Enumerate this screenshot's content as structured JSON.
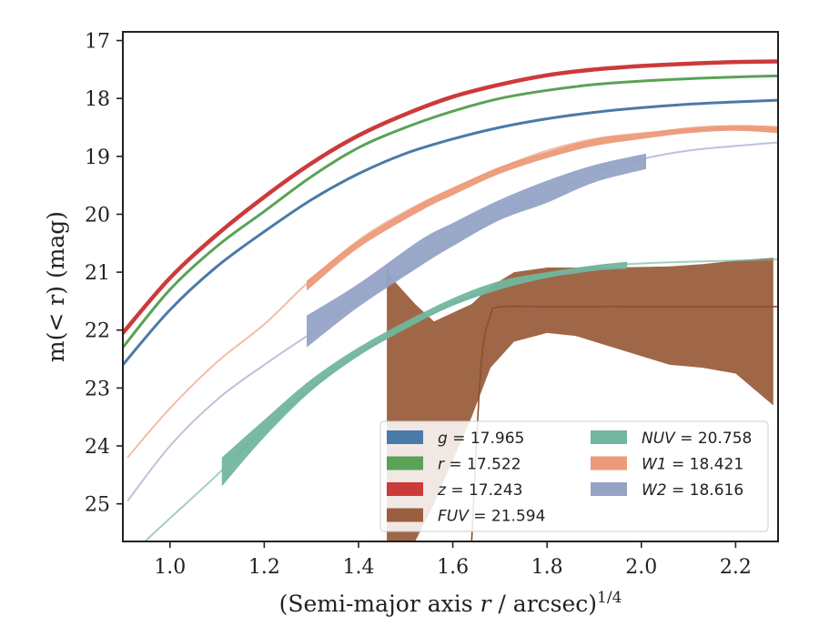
{
  "chart_data": {
    "type": "line",
    "xlabel": "(Semi-major axis r / arcsec)",
    "xlabel_sup": "1/4",
    "ylabel": "m(< r) (mag)",
    "xlim": [
      0.9,
      2.29
    ],
    "ylim": [
      25.65,
      16.85
    ],
    "y_inverted": true,
    "x_ticks": [
      1.0,
      1.2,
      1.4,
      1.6,
      1.8,
      2.0,
      2.2
    ],
    "x_tick_labels": [
      "1.0",
      "1.2",
      "1.4",
      "1.6",
      "1.8",
      "2.0",
      "2.2"
    ],
    "y_ticks": [
      17,
      18,
      19,
      20,
      21,
      22,
      23,
      24,
      25
    ],
    "y_tick_labels": [
      "17",
      "18",
      "19",
      "20",
      "21",
      "22",
      "23",
      "24",
      "25"
    ],
    "grid": false,
    "legend_position": "lower-right",
    "series": [
      {
        "name": "g = 17.965",
        "symbol": "g",
        "value": "17.965",
        "color": "#4a7aa8",
        "x": [
          0.9,
          1.0,
          1.1,
          1.2,
          1.3,
          1.4,
          1.5,
          1.6,
          1.7,
          1.8,
          1.9,
          2.0,
          2.1,
          2.2,
          2.29
        ],
        "y": [
          22.6,
          21.65,
          20.9,
          20.3,
          19.75,
          19.3,
          18.95,
          18.7,
          18.5,
          18.35,
          18.24,
          18.16,
          18.1,
          18.06,
          18.03
        ],
        "band_x": [
          0.9,
          2.29
        ],
        "band_lo": [
          0.03,
          0.03
        ],
        "band_hi": [
          0.03,
          0.03
        ]
      },
      {
        "name": "r = 17.522",
        "symbol": "r",
        "value": "17.522",
        "color": "#5aa255",
        "x": [
          0.9,
          1.0,
          1.1,
          1.2,
          1.3,
          1.4,
          1.5,
          1.6,
          1.7,
          1.8,
          1.9,
          2.0,
          2.1,
          2.2,
          2.29
        ],
        "y": [
          22.3,
          21.3,
          20.55,
          19.95,
          19.35,
          18.85,
          18.5,
          18.22,
          18.0,
          17.86,
          17.76,
          17.7,
          17.66,
          17.63,
          17.61
        ],
        "band_x": [
          0.9,
          2.29
        ],
        "band_lo": [
          0.03,
          0.03
        ],
        "band_hi": [
          0.03,
          0.03
        ]
      },
      {
        "name": "z = 17.243",
        "symbol": "z",
        "value": "17.243",
        "color": "#cc3a3a",
        "x": [
          0.9,
          1.0,
          1.1,
          1.2,
          1.3,
          1.4,
          1.5,
          1.6,
          1.7,
          1.8,
          1.9,
          2.0,
          2.1,
          2.2,
          2.29
        ],
        "y": [
          22.05,
          21.1,
          20.35,
          19.7,
          19.12,
          18.64,
          18.27,
          17.97,
          17.76,
          17.6,
          17.5,
          17.44,
          17.4,
          17.37,
          17.36
        ],
        "band_x": [
          0.9,
          2.29
        ],
        "band_lo": [
          0.05,
          0.05
        ],
        "band_hi": [
          0.05,
          0.05
        ]
      },
      {
        "name": "FUV = 21.594",
        "symbol": "FUV",
        "value": "21.594",
        "color": "#9a5f3e",
        "x": [
          1.64,
          1.66,
          1.68,
          1.7,
          1.8,
          2.0,
          2.2,
          2.29
        ],
        "y": [
          25.65,
          22.6,
          21.75,
          21.6,
          21.594,
          21.594,
          21.594,
          21.594
        ],
        "band_x": [
          1.46,
          1.47,
          1.52,
          1.56,
          1.64,
          1.68,
          1.73,
          1.8,
          1.86,
          1.92,
          2.0,
          2.06,
          2.13,
          2.2,
          2.28
        ],
        "band_top": [
          20.85,
          21.1,
          21.55,
          21.85,
          21.55,
          21.25,
          21.0,
          20.92,
          20.92,
          20.92,
          20.91,
          20.9,
          20.86,
          20.8,
          20.75
        ],
        "band_bottom": [
          25.65,
          25.65,
          25.65,
          25.0,
          23.5,
          22.65,
          22.2,
          22.05,
          22.1,
          22.25,
          22.45,
          22.6,
          22.65,
          22.75,
          23.3
        ]
      },
      {
        "name": "NUV = 20.758",
        "symbol": "NUV",
        "value": "20.758",
        "color": "#72b69d",
        "x": [
          0.9,
          1.0,
          1.1,
          1.2,
          1.3,
          1.4,
          1.5,
          1.6,
          1.7,
          1.8,
          1.9,
          2.0,
          2.1,
          2.2,
          2.29
        ],
        "y": [
          26.0,
          25.25,
          24.5,
          23.7,
          23.0,
          22.4,
          21.95,
          21.55,
          21.25,
          21.05,
          20.9,
          20.85,
          20.82,
          20.8,
          20.78
        ],
        "band_x": [
          1.11,
          1.2,
          1.3,
          1.4,
          1.5,
          1.6,
          1.7,
          1.8,
          1.9,
          1.97
        ],
        "band_top": [
          24.2,
          23.55,
          22.85,
          22.3,
          21.85,
          21.45,
          21.15,
          21.0,
          20.88,
          20.82
        ],
        "band_bottom": [
          24.7,
          23.85,
          23.05,
          22.45,
          21.98,
          21.58,
          21.3,
          21.1,
          20.98,
          20.94
        ]
      },
      {
        "name": "W1 = 18.421",
        "symbol": "W1",
        "value": "18.421",
        "color": "#ec9a78",
        "x": [
          0.91,
          1.0,
          1.1,
          1.2,
          1.29,
          1.4,
          1.5,
          1.6,
          1.7,
          1.8,
          1.9,
          2.0,
          2.1,
          2.2,
          2.29
        ],
        "y": [
          24.2,
          23.35,
          22.55,
          21.9,
          21.2,
          20.45,
          19.95,
          19.55,
          19.2,
          18.9,
          18.7,
          18.6,
          18.55,
          18.52,
          18.54
        ],
        "band_x": [
          1.29,
          1.4,
          1.53,
          1.6,
          1.7,
          1.8,
          1.9,
          2.0,
          2.1,
          2.2,
          2.29
        ],
        "band_top": [
          21.15,
          20.45,
          19.82,
          19.55,
          19.18,
          18.92,
          18.7,
          18.6,
          18.5,
          18.46,
          18.48
        ],
        "band_bottom": [
          21.32,
          20.58,
          19.95,
          19.67,
          19.3,
          19.03,
          18.82,
          18.7,
          18.6,
          18.56,
          18.6
        ]
      },
      {
        "name": "W2 = 18.616",
        "symbol": "W2",
        "value": "18.616",
        "color": "#95a3c6",
        "x": [
          0.91,
          1.0,
          1.1,
          1.2,
          1.3,
          1.4,
          1.5,
          1.6,
          1.7,
          1.8,
          1.9,
          2.0,
          2.1,
          2.2,
          2.29
        ],
        "y": [
          24.95,
          24.0,
          23.2,
          22.6,
          22.05,
          21.5,
          21.0,
          20.5,
          20.05,
          19.65,
          19.3,
          19.05,
          18.9,
          18.82,
          18.76
        ],
        "band_x": [
          1.29,
          1.4,
          1.53,
          1.6,
          1.7,
          1.8,
          1.9,
          2.01
        ],
        "band_top": [
          21.75,
          21.2,
          20.45,
          20.15,
          19.75,
          19.42,
          19.15,
          18.95
        ],
        "band_bottom": [
          22.3,
          21.6,
          20.9,
          20.55,
          20.1,
          19.8,
          19.45,
          19.22
        ]
      }
    ]
  }
}
